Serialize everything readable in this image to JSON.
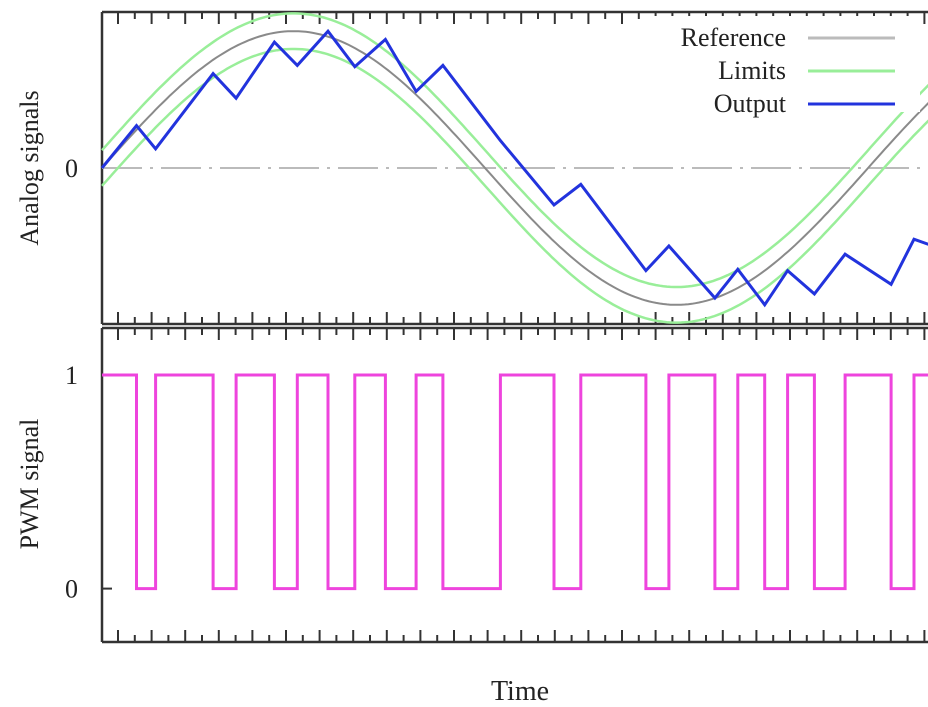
{
  "chart_data": [
    {
      "type": "line",
      "ylabel": "Analog signals",
      "ytick_labels": [
        {
          "value": 0,
          "label": "0"
        }
      ],
      "xlim": [
        0,
        1.12
      ],
      "ylim": [
        -1.14,
        1.14
      ],
      "series": [
        {
          "name": "Reference",
          "color": "#bbbbbb",
          "function": "sin(2*pi*t)",
          "x": [
            0,
            0.125,
            0.25,
            0.375,
            0.5,
            0.625,
            0.75,
            0.875,
            1.0,
            1.12
          ],
          "y": [
            0,
            0.707,
            1,
            0.707,
            0,
            -0.707,
            -1,
            -0.707,
            0,
            0.685
          ]
        },
        {
          "name": "Limits",
          "color": "#99ee99",
          "offsets": [
            0.13,
            -0.13
          ]
        },
        {
          "name": "Output",
          "color": "#2233dd",
          "x": [
            0,
            0.045,
            0.07,
            0.145,
            0.175,
            0.225,
            0.255,
            0.295,
            0.33,
            0.37,
            0.41,
            0.445,
            0.52,
            0.59,
            0.625,
            0.71,
            0.74,
            0.8,
            0.83,
            0.865,
            0.895,
            0.93,
            0.97,
            1.03,
            1.06,
            1.12
          ],
          "y": [
            0,
            0.31,
            0.14,
            0.69,
            0.51,
            0.92,
            0.75,
            1.0,
            0.74,
            0.94,
            0.56,
            0.75,
            0.2,
            -0.27,
            -0.12,
            -0.75,
            -0.57,
            -0.95,
            -0.74,
            -1.0,
            -0.75,
            -0.92,
            -0.63,
            -0.85,
            -0.52,
            -0.64
          ]
        }
      ],
      "zero_line": {
        "style": "dash-dot",
        "color": "#bbbbbb"
      },
      "legend": {
        "position": "top-right",
        "entries": [
          "Reference",
          "Limits",
          "Output"
        ]
      }
    },
    {
      "type": "line",
      "step": true,
      "xlabel": "Time",
      "ylabel": "PWM signal",
      "ytick_labels": [
        {
          "value": 1,
          "label": "1"
        },
        {
          "value": 0,
          "label": "0"
        }
      ],
      "xlim": [
        0,
        1.12
      ],
      "ylim": [
        -0.25,
        1.22
      ],
      "series": [
        {
          "name": "PWM",
          "color": "#ee44dd",
          "x": [
            0,
            0.045,
            0.045,
            0.07,
            0.07,
            0.145,
            0.145,
            0.175,
            0.175,
            0.225,
            0.225,
            0.255,
            0.255,
            0.295,
            0.295,
            0.33,
            0.33,
            0.37,
            0.37,
            0.41,
            0.41,
            0.445,
            0.445,
            0.52,
            0.52,
            0.59,
            0.59,
            0.625,
            0.625,
            0.71,
            0.71,
            0.74,
            0.74,
            0.8,
            0.8,
            0.83,
            0.83,
            0.865,
            0.865,
            0.895,
            0.895,
            0.93,
            0.93,
            0.97,
            0.97,
            1.03,
            1.03,
            1.06,
            1.06,
            1.12
          ],
          "y": [
            1,
            1,
            0,
            0,
            1,
            1,
            0,
            0,
            1,
            1,
            0,
            0,
            1,
            1,
            0,
            0,
            1,
            1,
            0,
            0,
            1,
            1,
            0,
            0,
            1,
            1,
            0,
            0,
            1,
            1,
            0,
            0,
            1,
            1,
            0,
            0,
            1,
            1,
            0,
            0,
            1,
            1,
            0,
            0,
            1,
            1,
            0,
            0,
            1,
            1
          ]
        }
      ]
    }
  ]
}
